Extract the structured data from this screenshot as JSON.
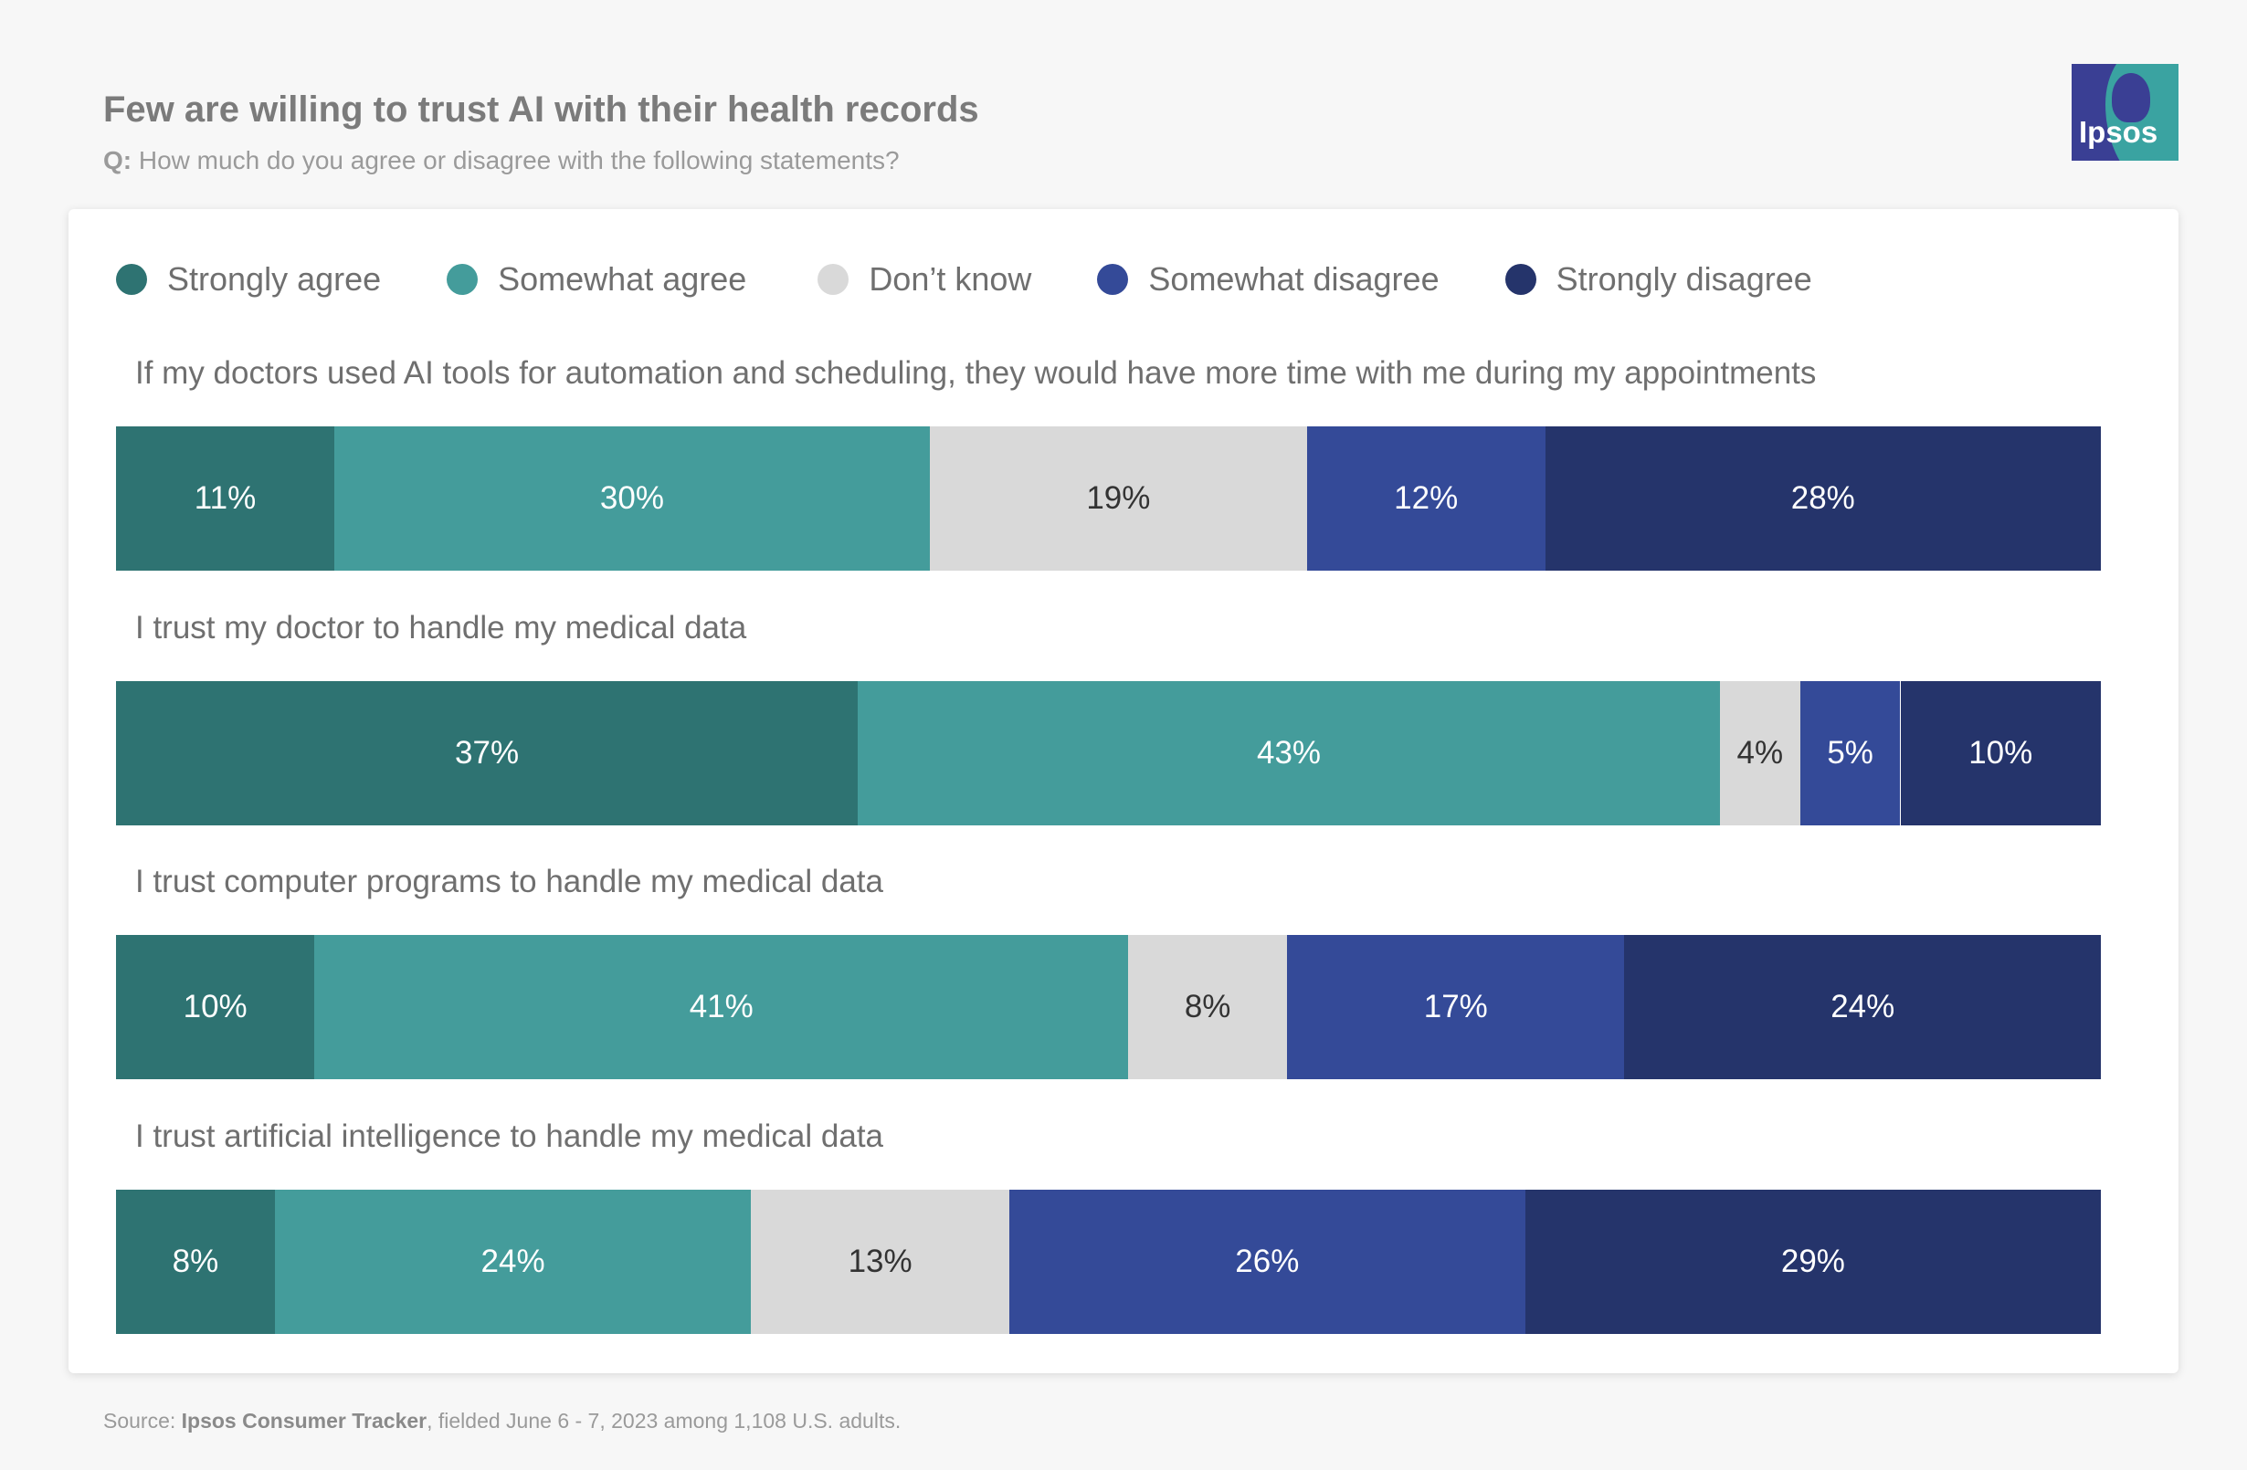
{
  "header": {
    "title": "Few are willing to trust AI with their health records",
    "question_prefix": "Q:",
    "question_text": "How much do you agree or disagree with the following statements?"
  },
  "logo": {
    "text": "Ipsos"
  },
  "colors": {
    "strongly_agree": "#2e7372",
    "somewhat_agree": "#449c9b",
    "dont_know": "#d9d9d9",
    "somewhat_disagree": "#344a98",
    "strongly_disagree": "#25346b",
    "dark_label": "#333333",
    "light_label": "#ffffff"
  },
  "chart_data": {
    "type": "bar",
    "orientation": "horizontal",
    "stacked": true,
    "normalized": true,
    "categories": [
      "If my doctors used AI tools for automation and scheduling, they would have more time with me during my appointments",
      "I trust my doctor to handle my medical data",
      "I trust computer programs to handle my medical data",
      "I trust artificial intelligence to handle my medical data"
    ],
    "series": [
      {
        "name": "Strongly agree",
        "values": [
          11,
          37,
          10,
          8
        ]
      },
      {
        "name": "Somewhat agree",
        "values": [
          30,
          43,
          41,
          24
        ]
      },
      {
        "name": "Don’t know",
        "values": [
          19,
          4,
          8,
          13
        ]
      },
      {
        "name": "Somewhat disagree",
        "values": [
          12,
          5,
          17,
          26
        ]
      },
      {
        "name": "Strongly disagree",
        "values": [
          28,
          10,
          24,
          29
        ]
      }
    ],
    "value_suffix": "%",
    "legend_position": "top",
    "grid": false
  },
  "footer": {
    "source_prefix": "Source:",
    "source_name": "Ipsos Consumer Tracker",
    "source_rest": ", fielded June 6 - 7, 2023 among 1,108 U.S. adults."
  }
}
